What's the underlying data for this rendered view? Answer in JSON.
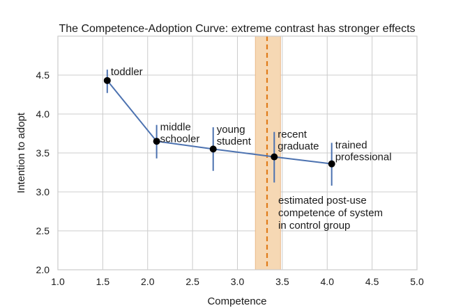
{
  "chart_data": {
    "type": "line",
    "title": "The Competence-Adoption Curve: extreme contrast has stronger effects",
    "xlabel": "Competence",
    "ylabel": "Intention to adopt",
    "xlim": [
      1.0,
      5.0
    ],
    "ylim": [
      2.0,
      5.0
    ],
    "xticks": [
      "1.0",
      "1.5",
      "2.0",
      "2.5",
      "3.0",
      "3.5",
      "4.0",
      "4.5",
      "5.0"
    ],
    "yticks": [
      "2.0",
      "2.5",
      "3.0",
      "3.5",
      "4.0",
      "4.5"
    ],
    "grid": true,
    "points": [
      {
        "label": [
          "toddler"
        ],
        "x": 1.55,
        "y": 4.43,
        "err_low": 4.27,
        "err_high": 4.57
      },
      {
        "label": [
          "middle",
          "schooler"
        ],
        "x": 2.1,
        "y": 3.65,
        "err_low": 3.43,
        "err_high": 3.86
      },
      {
        "label": [
          "young",
          "student"
        ],
        "x": 2.73,
        "y": 3.55,
        "err_low": 3.27,
        "err_high": 3.83
      },
      {
        "label": [
          "recent",
          "graduate"
        ],
        "x": 3.41,
        "y": 3.45,
        "err_low": 3.12,
        "err_high": 3.77
      },
      {
        "label": [
          "trained",
          "professional"
        ],
        "x": 4.05,
        "y": 3.36,
        "err_low": 3.08,
        "err_high": 3.63
      }
    ],
    "reference": {
      "x": 3.33,
      "band": [
        3.2,
        3.48
      ],
      "annotation": [
        "estimated post-use",
        "competence of system",
        "in control group"
      ]
    },
    "colors": {
      "line": "#4c72b0",
      "marker": "#000000",
      "band": "#f6d8b4",
      "band_edge": "#eab98a",
      "ref_line": "#e07b1a",
      "grid": "#cccccc",
      "axis_text": "#1a1a1a"
    }
  }
}
